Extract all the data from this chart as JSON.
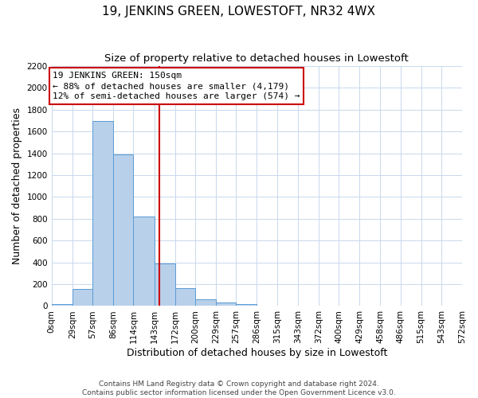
{
  "title": "19, JENKINS GREEN, LOWESTOFT, NR32 4WX",
  "subtitle": "Size of property relative to detached houses in Lowestoft",
  "xlabel": "Distribution of detached houses by size in Lowestoft",
  "ylabel": "Number of detached properties",
  "bin_edges": [
    0,
    29,
    57,
    86,
    114,
    143,
    172,
    200,
    229,
    257,
    286,
    315,
    343,
    372,
    400,
    429,
    458,
    486,
    515,
    543,
    572
  ],
  "bar_heights": [
    15,
    155,
    1700,
    1390,
    820,
    390,
    165,
    65,
    30,
    20,
    0,
    0,
    0,
    0,
    0,
    0,
    0,
    0,
    0,
    0
  ],
  "bar_color": "#b8d0ea",
  "bar_edge_color": "#5b9bd5",
  "subject_value": 150,
  "red_line_color": "#cc0000",
  "annotation_text_line1": "19 JENKINS GREEN: 150sqm",
  "annotation_text_line2": "← 88% of detached houses are smaller (4,179)",
  "annotation_text_line3": "12% of semi-detached houses are larger (574) →",
  "annotation_box_color": "#ffffff",
  "annotation_box_edge_color": "#cc0000",
  "ylim": [
    0,
    2200
  ],
  "ytick_values": [
    0,
    200,
    400,
    600,
    800,
    1000,
    1200,
    1400,
    1600,
    1800,
    2000,
    2200
  ],
  "xtick_labels": [
    "0sqm",
    "29sqm",
    "57sqm",
    "86sqm",
    "114sqm",
    "143sqm",
    "172sqm",
    "200sqm",
    "229sqm",
    "257sqm",
    "286sqm",
    "315sqm",
    "343sqm",
    "372sqm",
    "400sqm",
    "429sqm",
    "458sqm",
    "486sqm",
    "515sqm",
    "543sqm",
    "572sqm"
  ],
  "footer_line1": "Contains HM Land Registry data © Crown copyright and database right 2024.",
  "footer_line2": "Contains public sector information licensed under the Open Government Licence v3.0.",
  "background_color": "#ffffff",
  "grid_color": "#c8d8ec",
  "title_fontsize": 11,
  "subtitle_fontsize": 9.5,
  "axis_label_fontsize": 9,
  "tick_fontsize": 7.5,
  "footer_fontsize": 6.5,
  "annotation_fontsize": 8
}
